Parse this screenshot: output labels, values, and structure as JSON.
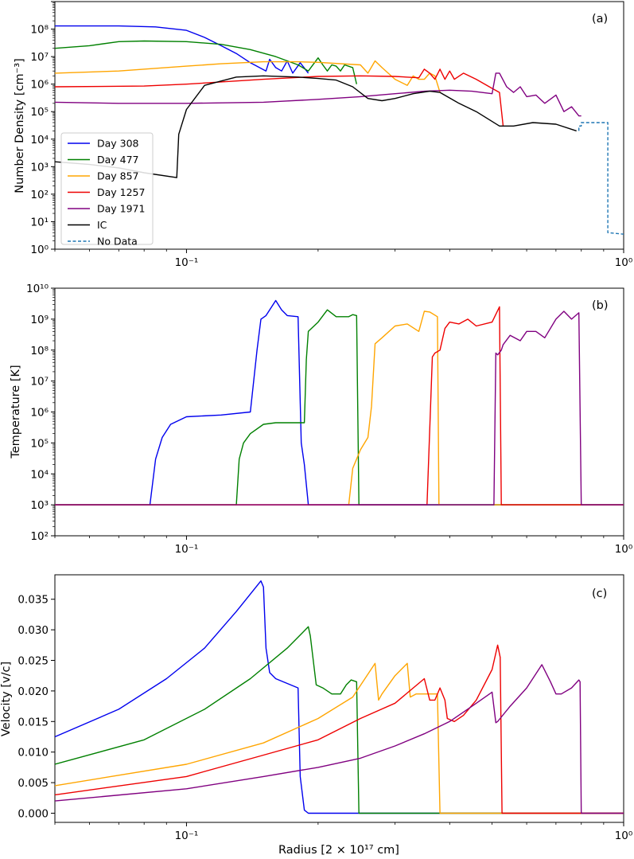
{
  "chart_data": [
    {
      "type": "line",
      "panel_label": "(a)",
      "ylabel": "Number Density  [cm$^{-3}$]",
      "ylabel_display": "Number Density  [cm⁻³]",
      "xscale": "log",
      "yscale": "log",
      "xlim": [
        0.05,
        1.0
      ],
      "ylim": [
        1,
        1000000000.0
      ],
      "x_ticks": [
        "10⁻¹",
        "10⁰"
      ],
      "y_ticks": [
        "10⁰",
        "10¹",
        "10²",
        "10³",
        "10⁴",
        "10⁵",
        "10⁶",
        "10⁷",
        "10⁸"
      ],
      "legend_position": "lower-left",
      "series": [
        {
          "name": "Day 308",
          "color": "#0000ee",
          "style": "solid",
          "x": [
            0.05,
            0.07,
            0.085,
            0.1,
            0.11,
            0.12,
            0.13,
            0.14,
            0.152,
            0.155,
            0.16,
            0.165,
            0.17,
            0.175,
            0.182,
            0.19
          ],
          "y": [
            130000000.0,
            130000000.0,
            120000000.0,
            90000000.0,
            50000000.0,
            25000000.0,
            13000000.0,
            6000000.0,
            3000000.0,
            8000000.0,
            4000000.0,
            3000000.0,
            7000000.0,
            2500000.0,
            6000000.0,
            2500000.0
          ]
        },
        {
          "name": "Day 477",
          "color": "#008000",
          "style": "solid",
          "x": [
            0.05,
            0.06,
            0.07,
            0.08,
            0.1,
            0.12,
            0.14,
            0.16,
            0.18,
            0.19,
            0.2,
            0.205,
            0.21,
            0.215,
            0.22,
            0.225,
            0.23,
            0.24,
            0.245
          ],
          "y": [
            20000000.0,
            25000000.0,
            35000000.0,
            37000000.0,
            35000000.0,
            28000000.0,
            18000000.0,
            10000000.0,
            5000000.0,
            3000000.0,
            9000000.0,
            5000000.0,
            3000000.0,
            5000000.0,
            4500000.0,
            3000000.0,
            5000000.0,
            4000000.0,
            1000000.0
          ]
        },
        {
          "name": "Day 857",
          "color": "#ffa500",
          "style": "solid",
          "x": [
            0.05,
            0.07,
            0.1,
            0.12,
            0.15,
            0.18,
            0.2,
            0.25,
            0.26,
            0.27,
            0.28,
            0.3,
            0.32,
            0.33,
            0.34,
            0.35,
            0.36,
            0.37,
            0.38
          ],
          "y": [
            2500000.0,
            3000000.0,
            4500000.0,
            5500000.0,
            6500000.0,
            6500000.0,
            6200000.0,
            5000000.0,
            2500000.0,
            7000000.0,
            4000000.0,
            1500000.0,
            900000.0,
            2000000.0,
            1500000.0,
            1500000.0,
            2500000.0,
            2000000.0,
            500000.0
          ]
        },
        {
          "name": "Day 1257",
          "color": "#ee0000",
          "style": "solid",
          "x": [
            0.05,
            0.08,
            0.1,
            0.15,
            0.2,
            0.25,
            0.3,
            0.34,
            0.35,
            0.36,
            0.37,
            0.38,
            0.39,
            0.4,
            0.41,
            0.43,
            0.46,
            0.5,
            0.52,
            0.53
          ],
          "y": [
            800000.0,
            850000.0,
            1000000.0,
            1500000.0,
            1900000.0,
            2000000.0,
            1900000.0,
            1700000.0,
            3500000.0,
            2500000.0,
            1500000.0,
            3500000.0,
            1500000.0,
            3000000.0,
            1500000.0,
            2500000.0,
            1500000.0,
            700000.0,
            500000.0,
            30000.0
          ]
        },
        {
          "name": "Day 1971",
          "color": "#800080",
          "style": "solid",
          "x": [
            0.05,
            0.07,
            0.1,
            0.15,
            0.2,
            0.25,
            0.3,
            0.35,
            0.4,
            0.45,
            0.5,
            0.51,
            0.52,
            0.54,
            0.56,
            0.58,
            0.6,
            0.63,
            0.66,
            0.7,
            0.73,
            0.76,
            0.79,
            0.8
          ],
          "y": [
            220000.0,
            200000.0,
            200000.0,
            220000.0,
            280000.0,
            350000.0,
            450000.0,
            550000.0,
            600000.0,
            550000.0,
            450000.0,
            2500000.0,
            2500000.0,
            800000.0,
            500000.0,
            800000.0,
            350000.0,
            400000.0,
            200000.0,
            400000.0,
            100000.0,
            150000.0,
            70000.0,
            70000.0
          ]
        },
        {
          "name": "IC",
          "color": "#000000",
          "style": "solid",
          "x": [
            0.05,
            0.06,
            0.07,
            0.08,
            0.095,
            0.096,
            0.1,
            0.11,
            0.13,
            0.15,
            0.18,
            0.2,
            0.22,
            0.24,
            0.26,
            0.28,
            0.3,
            0.33,
            0.36,
            0.38,
            0.42,
            0.46,
            0.52,
            0.56,
            0.62,
            0.7,
            0.78
          ],
          "y": [
            1500.0,
            1200.0,
            900.0,
            600.0,
            400.0,
            15000.0,
            120000.0,
            900000.0,
            1800000.0,
            2000000.0,
            1800000.0,
            1600000.0,
            1400000.0,
            800000.0,
            300000.0,
            250000.0,
            300000.0,
            450000.0,
            550000.0,
            500000.0,
            200000.0,
            100000.0,
            30000.0,
            30000.0,
            40000.0,
            35000.0,
            20000.0
          ]
        },
        {
          "name": "No Data",
          "color": "#1f77b4",
          "style": "dashed",
          "x": [
            0.79,
            0.79,
            0.8,
            0.8,
            0.92,
            0.92,
            1.0
          ],
          "y": [
            20000.0,
            30000.0,
            30000.0,
            40000.0,
            40000.0,
            4,
            3.5
          ]
        }
      ]
    },
    {
      "type": "line",
      "panel_label": "(b)",
      "ylabel": "Temperature  [K]",
      "xscale": "log",
      "yscale": "log",
      "xlim": [
        0.05,
        1.0
      ],
      "ylim": [
        100,
        10000000000.0
      ],
      "x_ticks": [
        "10⁻¹",
        "10⁰"
      ],
      "y_ticks": [
        "10²",
        "10³",
        "10⁴",
        "10⁵",
        "10⁶",
        "10⁷",
        "10⁸",
        "10⁹",
        "10¹⁰"
      ],
      "series": [
        {
          "name": "Day 308",
          "color": "#0000ee",
          "x": [
            0.05,
            0.0825,
            0.085,
            0.088,
            0.092,
            0.1,
            0.12,
            0.14,
            0.145,
            0.148,
            0.152,
            0.16,
            0.165,
            0.17,
            0.18,
            0.183,
            0.186,
            0.19,
            1.0
          ],
          "y": [
            1000.0,
            1000.0,
            30000.0,
            150000.0,
            400000.0,
            700000.0,
            800000.0,
            1000000.0,
            100000000.0,
            1000000000.0,
            1300000000.0,
            4000000000.0,
            2000000000.0,
            1300000000.0,
            1200000000.0,
            100000.0,
            20000.0,
            1000.0,
            1000.0
          ]
        },
        {
          "name": "Day 477",
          "color": "#008000",
          "x": [
            0.05,
            0.13,
            0.132,
            0.135,
            0.14,
            0.15,
            0.16,
            0.18,
            0.186,
            0.188,
            0.19,
            0.2,
            0.21,
            0.22,
            0.235,
            0.24,
            0.245,
            0.248,
            1.0
          ],
          "y": [
            1000.0,
            1000.0,
            30000.0,
            100000.0,
            200000.0,
            400000.0,
            450000.0,
            450000.0,
            450000.0,
            50000000.0,
            400000000.0,
            800000000.0,
            2000000000.0,
            1200000000.0,
            1200000000.0,
            1400000000.0,
            1300000000.0,
            1000.0,
            1000.0
          ]
        },
        {
          "name": "Day 857",
          "color": "#ffa500",
          "x": [
            0.05,
            0.235,
            0.24,
            0.25,
            0.26,
            0.265,
            0.27,
            0.28,
            0.3,
            0.32,
            0.34,
            0.35,
            0.36,
            0.375,
            0.378,
            1.0
          ],
          "y": [
            1000.0,
            1000.0,
            15000.0,
            60000.0,
            150000.0,
            1500000.0,
            160000000.0,
            250000000.0,
            600000000.0,
            700000000.0,
            400000000.0,
            1800000000.0,
            1700000000.0,
            1200000000.0,
            1000.0,
            1000.0
          ]
        },
        {
          "name": "Day 1257",
          "color": "#ee0000",
          "x": [
            0.05,
            0.355,
            0.365,
            0.37,
            0.38,
            0.39,
            0.4,
            0.42,
            0.44,
            0.46,
            0.5,
            0.52,
            0.525,
            1.0
          ],
          "y": [
            1000.0,
            1000.0,
            60000000.0,
            80000000.0,
            100000000.0,
            500000000.0,
            800000000.0,
            700000000.0,
            1000000000.0,
            600000000.0,
            800000000.0,
            2500000000.0,
            1000.0,
            1000.0
          ]
        },
        {
          "name": "Day 1971",
          "color": "#800080",
          "x": [
            0.05,
            0.505,
            0.51,
            0.515,
            0.525,
            0.53,
            0.55,
            0.58,
            0.6,
            0.63,
            0.66,
            0.7,
            0.73,
            0.76,
            0.79,
            0.8,
            1.0
          ],
          "y": [
            1000.0,
            1000.0,
            80000000.0,
            70000000.0,
            100000000.0,
            150000000.0,
            300000000.0,
            200000000.0,
            400000000.0,
            400000000.0,
            250000000.0,
            1000000000.0,
            1800000000.0,
            1000000000.0,
            1600000000.0,
            1000.0,
            1000.0
          ]
        }
      ]
    },
    {
      "type": "line",
      "panel_label": "(c)",
      "ylabel": "Velocity [v/c]",
      "xlabel": "Radius [2 × 10¹⁷ cm]",
      "xscale": "log",
      "yscale": "linear",
      "xlim": [
        0.05,
        1.0
      ],
      "ylim": [
        -0.0015,
        0.039
      ],
      "x_ticks": [
        "10⁻¹",
        "10⁰"
      ],
      "y_ticks": [
        "0.000",
        "0.005",
        "0.010",
        "0.015",
        "0.020",
        "0.025",
        "0.030",
        "0.035"
      ],
      "series": [
        {
          "name": "Day 308",
          "color": "#0000ee",
          "x": [
            0.05,
            0.07,
            0.09,
            0.11,
            0.13,
            0.148,
            0.15,
            0.152,
            0.155,
            0.16,
            0.18,
            0.182,
            0.186,
            0.19,
            1.0
          ],
          "y": [
            0.0125,
            0.017,
            0.022,
            0.027,
            0.033,
            0.038,
            0.037,
            0.027,
            0.023,
            0.022,
            0.0205,
            0.006,
            0.0005,
            0.0,
            0.0
          ]
        },
        {
          "name": "Day 477",
          "color": "#008000",
          "x": [
            0.05,
            0.08,
            0.11,
            0.14,
            0.17,
            0.19,
            0.192,
            0.198,
            0.205,
            0.215,
            0.225,
            0.232,
            0.238,
            0.245,
            0.248,
            1.0
          ],
          "y": [
            0.008,
            0.012,
            0.017,
            0.022,
            0.027,
            0.0305,
            0.029,
            0.021,
            0.0205,
            0.0195,
            0.0195,
            0.021,
            0.0218,
            0.0215,
            0.0,
            0.0
          ]
        },
        {
          "name": "Day 857",
          "color": "#ffa500",
          "x": [
            0.05,
            0.1,
            0.15,
            0.2,
            0.24,
            0.27,
            0.275,
            0.28,
            0.3,
            0.32,
            0.325,
            0.335,
            0.36,
            0.375,
            0.38,
            1.0
          ],
          "y": [
            0.0045,
            0.008,
            0.0115,
            0.0155,
            0.019,
            0.0245,
            0.0185,
            0.0195,
            0.0225,
            0.0245,
            0.019,
            0.0195,
            0.0195,
            0.0195,
            0.0,
            0.0
          ]
        },
        {
          "name": "Day 1257",
          "color": "#ee0000",
          "x": [
            0.05,
            0.1,
            0.15,
            0.2,
            0.25,
            0.3,
            0.35,
            0.36,
            0.37,
            0.38,
            0.39,
            0.395,
            0.41,
            0.43,
            0.46,
            0.5,
            0.515,
            0.522,
            0.527,
            1.0
          ],
          "y": [
            0.003,
            0.006,
            0.0095,
            0.012,
            0.0155,
            0.018,
            0.022,
            0.0185,
            0.0185,
            0.0205,
            0.0185,
            0.0155,
            0.015,
            0.016,
            0.0185,
            0.0235,
            0.0275,
            0.0255,
            0.0,
            0.0
          ]
        },
        {
          "name": "Day 1971",
          "color": "#800080",
          "x": [
            0.05,
            0.1,
            0.15,
            0.2,
            0.25,
            0.3,
            0.35,
            0.4,
            0.45,
            0.5,
            0.51,
            0.515,
            0.55,
            0.6,
            0.65,
            0.68,
            0.7,
            0.72,
            0.76,
            0.79,
            0.795,
            0.8,
            1.0
          ],
          "y": [
            0.002,
            0.004,
            0.006,
            0.0075,
            0.009,
            0.011,
            0.013,
            0.015,
            0.0175,
            0.0198,
            0.0148,
            0.015,
            0.0175,
            0.0205,
            0.0243,
            0.0215,
            0.0195,
            0.0195,
            0.0205,
            0.0218,
            0.0215,
            0.0,
            0.0
          ]
        }
      ]
    }
  ]
}
